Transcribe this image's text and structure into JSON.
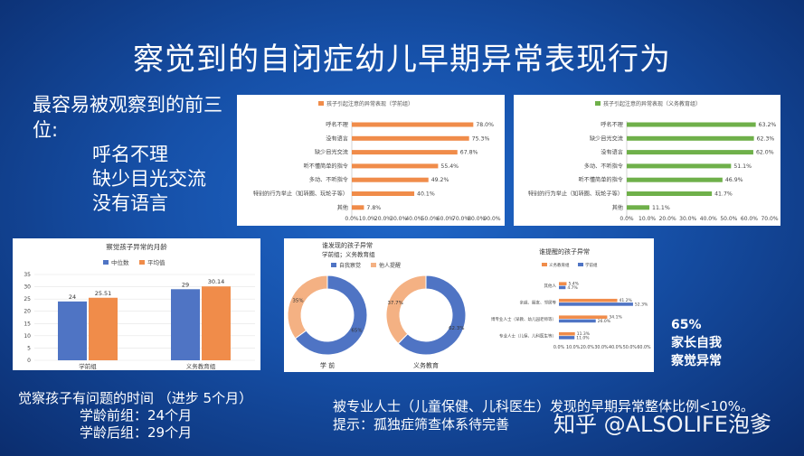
{
  "slide": {
    "title": "察觉到的自闭症幼儿早期异常表现行为",
    "top3_heading": "最容易被观察到的前三位:",
    "top3": [
      "呼名不理",
      "缺少目光交流",
      "没有语言"
    ],
    "parent_pct": "65%",
    "parent_text_1": "家长自我",
    "parent_text_2": "察觉异常",
    "notice_title": "觉察孩子有问题的时间 （进步 5个月）",
    "notice_pre": "学龄前组：24个月",
    "notice_post": "学龄后组：29个月",
    "prof_line": "被专业人士（儿童保健、儿科医生）发现的早期异常整体比例<10%。",
    "hint_line": "提示：孤独症筛查体系待完善",
    "watermark": "知乎 @ALSOLIFE泡爹"
  },
  "chart_data": [
    {
      "type": "bar",
      "orientation": "horizontal",
      "title": "孩子引起注意的异常表现（学前组）",
      "legend": "孩子引起注意的异常表现（学前组）",
      "color": "#f08c4a",
      "categories": [
        "呼名不理",
        "没有语言",
        "缺少目光交流",
        "听不懂简单的指令",
        "多动、不听指令",
        "特别的行为举止（如转圈、玩轮子等）",
        "其他"
      ],
      "values": [
        78.0,
        75.3,
        67.8,
        55.4,
        49.2,
        40.1,
        7.8
      ],
      "value_labels": [
        "78.0%",
        "75.3%",
        "67.8%",
        "55.4%",
        "49.2%",
        "40.1%",
        "7.8%"
      ],
      "xticks": [
        "0.0%",
        "10.0%",
        "20.0%",
        "30.0%",
        "40.0%",
        "50.0%",
        "60.0%",
        "70.0%",
        "80.0%",
        "90.0%"
      ],
      "xlim": [
        0,
        90
      ]
    },
    {
      "type": "bar",
      "orientation": "horizontal",
      "title": "孩子引起注意的异常表现（义务教育组）",
      "legend": "孩子引起注意的异常表现（义务教育组）",
      "color": "#6fb04a",
      "categories": [
        "呼名不理",
        "缺少目光交流",
        "没有语言",
        "多动、不听指令",
        "听不懂简单的指令",
        "特别的行为举止（如转圈、玩轮子等）",
        "其他"
      ],
      "values": [
        63.2,
        62.3,
        62.0,
        51.1,
        46.9,
        41.7,
        11.1
      ],
      "value_labels": [
        "63.2%",
        "62.3%",
        "62.0%",
        "51.1%",
        "46.9%",
        "41.7%",
        "11.1%"
      ],
      "xticks": [
        "0.0%",
        "10.0%",
        "20.0%",
        "30.0%",
        "40.0%",
        "50.0%",
        "60.0%",
        "70.0%"
      ],
      "xlim": [
        0,
        70
      ]
    },
    {
      "type": "bar",
      "title": "察觉孩子异常的月龄",
      "categories": [
        "学前组",
        "义务教育组"
      ],
      "series": [
        {
          "name": "中位数",
          "values": [
            24,
            29
          ],
          "labels": [
            "24",
            "29"
          ],
          "color": "#4f74c4"
        },
        {
          "name": "平均值",
          "values": [
            25.51,
            30.14
          ],
          "labels": [
            "25.51",
            "30.14"
          ],
          "color": "#f08c4a"
        }
      ],
      "yticks": [
        "0",
        "5",
        "10",
        "15",
        "20",
        "25",
        "30",
        "35"
      ],
      "ylim": [
        0,
        35
      ],
      "legend_position": "top"
    },
    {
      "type": "pie",
      "title": "谁发现的孩子异常",
      "subtitle": "学前组；义务教育组",
      "legend": [
        {
          "name": "自我察觉",
          "color": "#4f74c4"
        },
        {
          "name": "他人提醒",
          "color": "#f4b183"
        }
      ],
      "rings": [
        {
          "label": "学 前",
          "slices": [
            {
              "name": "自我察觉",
              "value": 65
            },
            {
              "name": "他人提醒",
              "value": 35
            }
          ],
          "value_labels": [
            "65%",
            "35%"
          ]
        },
        {
          "label": "义务教育",
          "slices": [
            {
              "name": "自我察觉",
              "value": 62.3
            },
            {
              "name": "他人提醒",
              "value": 37.7
            }
          ],
          "value_labels": [
            "62.3%",
            "37.7%"
          ]
        }
      ]
    },
    {
      "type": "bar",
      "orientation": "horizontal",
      "title": "谁提醒的孩子异常",
      "categories": [
        "其他人",
        "亲戚、朋友、邻居等",
        "博专业人士（早教、幼儿园老师等）",
        "专业人士（儿保、儿科医生等）"
      ],
      "series": [
        {
          "name": "义务教育组",
          "values": [
            5.4,
            41.2,
            34.1,
            11.3
          ],
          "labels": [
            "5.4%",
            "41.2%",
            "34.1%",
            "11.3%"
          ],
          "color": "#f08c4a"
        },
        {
          "name": "学前组",
          "values": [
            4.7,
            52.3,
            26.0,
            11.0
          ],
          "labels": [
            "4.7%",
            "52.3%",
            "26.0%",
            "11.0%"
          ],
          "color": "#4f74c4"
        }
      ],
      "xticks": [
        "0.0%",
        "10.0%",
        "20.0%",
        "30.0%",
        "40.0%",
        "50.0%",
        "60.0%"
      ],
      "xlim": [
        0,
        60
      ]
    }
  ]
}
